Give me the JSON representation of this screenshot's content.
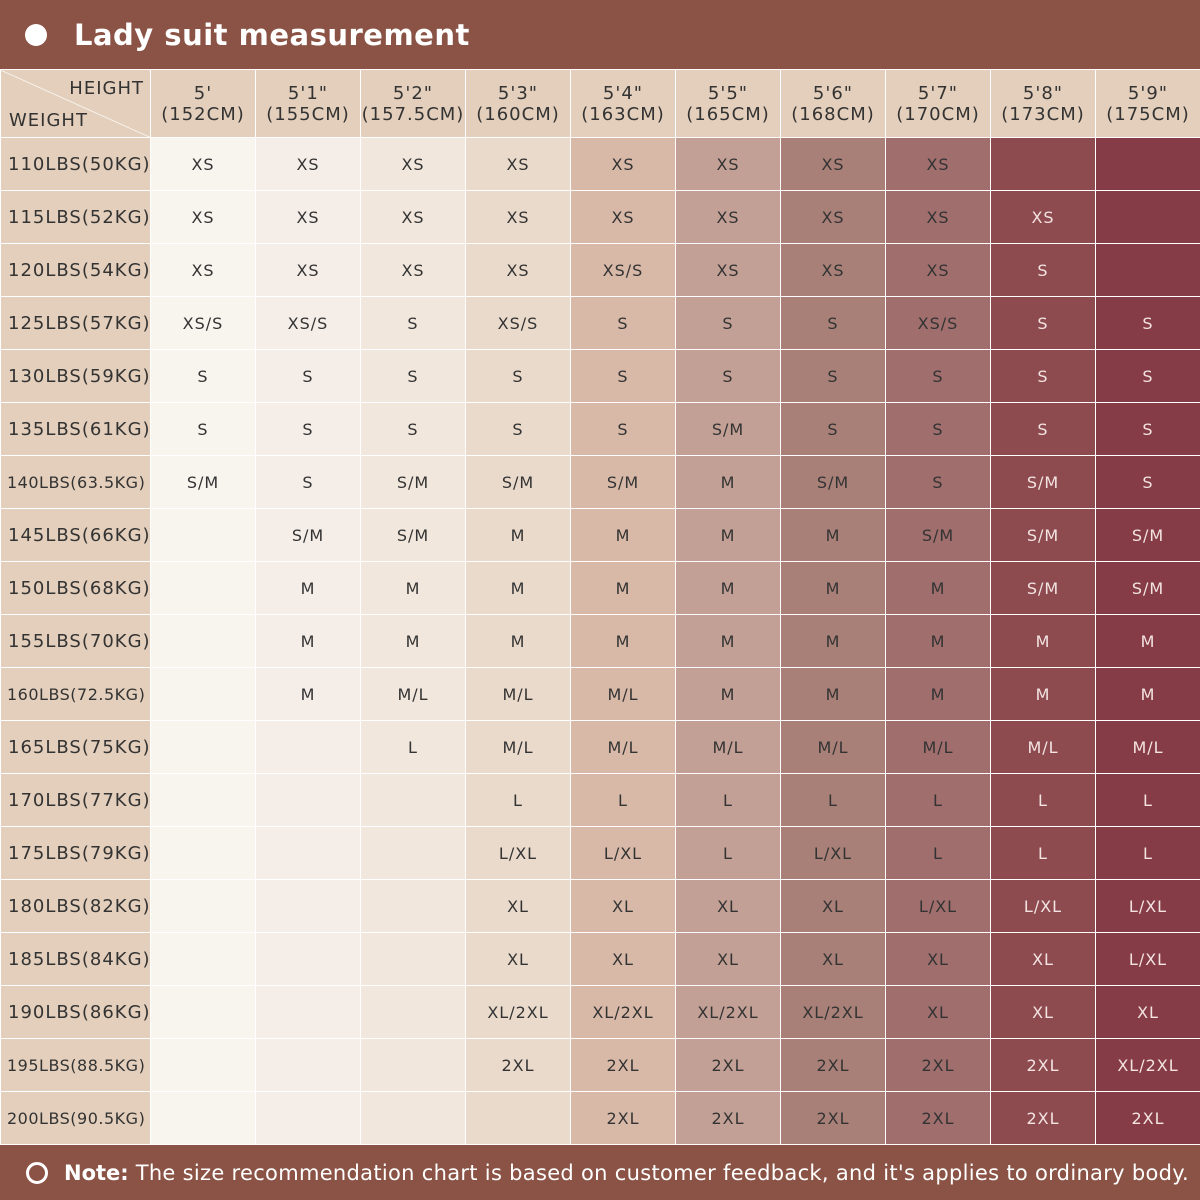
{
  "title": "Lady suit measurement",
  "corner": {
    "height_label": "HEIGHT",
    "weight_label": "WEIGHT"
  },
  "heights": [
    {
      "ft": "5'",
      "cm": "(152CM)"
    },
    {
      "ft": "5'1\"",
      "cm": "(155CM)"
    },
    {
      "ft": "5'2\"",
      "cm": "(157.5CM)"
    },
    {
      "ft": "5'3\"",
      "cm": "(160CM)"
    },
    {
      "ft": "5'4\"",
      "cm": "(163CM)"
    },
    {
      "ft": "5'5\"",
      "cm": "(165CM)"
    },
    {
      "ft": "5'6\"",
      "cm": "(168CM)"
    },
    {
      "ft": "5'7\"",
      "cm": "(170CM)"
    },
    {
      "ft": "5'8\"",
      "cm": "(173CM)"
    },
    {
      "ft": "5'9\"",
      "cm": "(175CM)"
    }
  ],
  "rows": [
    {
      "weight": "110LBS(50KG)",
      "sizes": [
        "XS",
        "XS",
        "XS",
        "XS",
        "XS",
        "XS",
        "XS",
        "XS",
        "",
        ""
      ]
    },
    {
      "weight": "115LBS(52KG)",
      "sizes": [
        "XS",
        "XS",
        "XS",
        "XS",
        "XS",
        "XS",
        "XS",
        "XS",
        "XS",
        ""
      ]
    },
    {
      "weight": "120LBS(54KG)",
      "sizes": [
        "XS",
        "XS",
        "XS",
        "XS",
        "XS/S",
        "XS",
        "XS",
        "XS",
        "S",
        ""
      ]
    },
    {
      "weight": "125LBS(57KG)",
      "sizes": [
        "XS/S",
        "XS/S",
        "S",
        "XS/S",
        "S",
        "S",
        "S",
        "XS/S",
        "S",
        "S"
      ]
    },
    {
      "weight": "130LBS(59KG)",
      "sizes": [
        "S",
        "S",
        "S",
        "S",
        "S",
        "S",
        "S",
        "S",
        "S",
        "S"
      ]
    },
    {
      "weight": "135LBS(61KG)",
      "sizes": [
        "S",
        "S",
        "S",
        "S",
        "S",
        "S/M",
        "S",
        "S",
        "S",
        "S"
      ]
    },
    {
      "weight": "140LBS(63.5KG)",
      "sizes": [
        "S/M",
        "S",
        "S/M",
        "S/M",
        "S/M",
        "M",
        "S/M",
        "S",
        "S/M",
        "S"
      ]
    },
    {
      "weight": "145LBS(66KG)",
      "sizes": [
        "",
        "S/M",
        "S/M",
        "M",
        "M",
        "M",
        "M",
        "S/M",
        "S/M",
        "S/M"
      ]
    },
    {
      "weight": "150LBS(68KG)",
      "sizes": [
        "",
        "M",
        "M",
        "M",
        "M",
        "M",
        "M",
        "M",
        "S/M",
        "S/M"
      ]
    },
    {
      "weight": "155LBS(70KG)",
      "sizes": [
        "",
        "M",
        "M",
        "M",
        "M",
        "M",
        "M",
        "M",
        "M",
        "M"
      ]
    },
    {
      "weight": "160LBS(72.5KG)",
      "sizes": [
        "",
        "M",
        "M/L",
        "M/L",
        "M/L",
        "M",
        "M",
        "M",
        "M",
        "M"
      ]
    },
    {
      "weight": "165LBS(75KG)",
      "sizes": [
        "",
        "",
        "L",
        "M/L",
        "M/L",
        "M/L",
        "M/L",
        "M/L",
        "M/L",
        "M/L"
      ]
    },
    {
      "weight": "170LBS(77KG)",
      "sizes": [
        "",
        "",
        "",
        "L",
        "L",
        "L",
        "L",
        "L",
        "L",
        "L"
      ]
    },
    {
      "weight": "175LBS(79KG)",
      "sizes": [
        "",
        "",
        "",
        "L/XL",
        "L/XL",
        "L",
        "L/XL",
        "L",
        "L",
        "L"
      ]
    },
    {
      "weight": "180LBS(82KG)",
      "sizes": [
        "",
        "",
        "",
        "XL",
        "XL",
        "XL",
        "XL",
        "L/XL",
        "L/XL",
        "L/XL"
      ]
    },
    {
      "weight": "185LBS(84KG)",
      "sizes": [
        "",
        "",
        "",
        "XL",
        "XL",
        "XL",
        "XL",
        "XL",
        "XL",
        "L/XL"
      ]
    },
    {
      "weight": "190LBS(86KG)",
      "sizes": [
        "",
        "",
        "",
        "XL/2XL",
        "XL/2XL",
        "XL/2XL",
        "XL/2XL",
        "XL",
        "XL",
        "XL"
      ]
    },
    {
      "weight": "195LBS(88.5KG)",
      "sizes": [
        "",
        "",
        "",
        "2XL",
        "2XL",
        "2XL",
        "2XL",
        "2XL",
        "2XL",
        "XL/2XL"
      ]
    },
    {
      "weight": "200LBS(90.5KG)",
      "sizes": [
        "",
        "",
        "",
        "",
        "2XL",
        "2XL",
        "2XL",
        "2XL",
        "2XL",
        "2XL"
      ]
    }
  ],
  "footer": {
    "label": "Note:",
    "text": "The size recommendation chart is based on customer feedback, and it's applies to ordinary body."
  }
}
